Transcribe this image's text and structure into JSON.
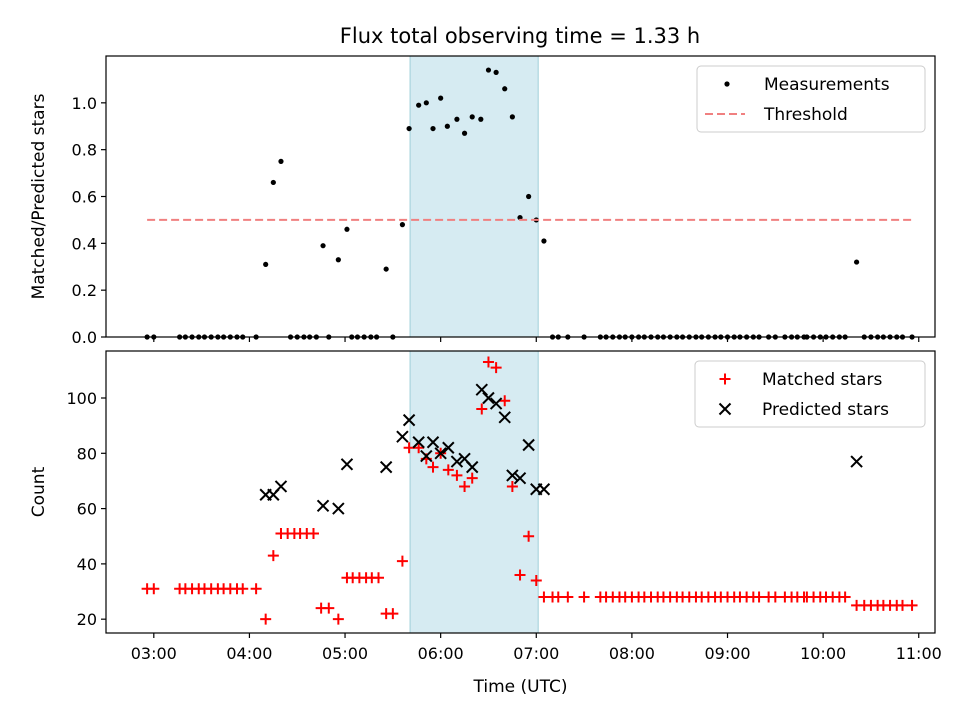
{
  "figure_title": "Flux total observing time = 1.33 h",
  "chart_data": [
    {
      "type": "scatter",
      "ylabel": "Matched/Predicted stars",
      "xlabel": "",
      "x_unit": "hours UTC",
      "xlim": [
        2.5,
        11.17
      ],
      "ylim": [
        0,
        1.2
      ],
      "yticks": [
        0.0,
        0.2,
        0.4,
        0.6,
        0.8,
        1.0
      ],
      "ytick_labels": [
        "0.0",
        "0.2",
        "0.4",
        "0.6",
        "0.8",
        "1.0"
      ],
      "xticks": [
        3,
        4,
        5,
        6,
        7,
        8,
        9,
        10,
        11
      ],
      "highlight_span": [
        5.68,
        7.02
      ],
      "legend_position": "upper right",
      "series": [
        {
          "name": "Measurements",
          "kind": "scatter",
          "marker": "dot",
          "color": "#000000",
          "x": [
            2.93,
            3.0,
            3.27,
            3.33,
            3.4,
            3.47,
            3.53,
            3.6,
            3.67,
            3.73,
            3.8,
            3.87,
            3.93,
            4.07,
            4.17,
            4.25,
            4.33,
            4.43,
            4.5,
            4.57,
            4.63,
            4.7,
            4.77,
            4.83,
            4.93,
            5.02,
            5.07,
            5.13,
            5.2,
            5.27,
            5.33,
            5.43,
            5.5,
            5.6,
            5.67,
            5.77,
            5.85,
            5.92,
            6.0,
            6.07,
            6.17,
            6.25,
            6.33,
            6.42,
            6.5,
            6.58,
            6.67,
            6.75,
            6.83,
            6.92,
            7.0,
            7.08,
            7.17,
            7.23,
            7.33,
            7.5,
            7.67,
            7.73,
            7.8,
            7.87,
            7.93,
            8.0,
            8.07,
            8.13,
            8.2,
            8.27,
            8.33,
            8.4,
            8.47,
            8.53,
            8.6,
            8.67,
            8.73,
            8.8,
            8.87,
            8.93,
            9.0,
            9.07,
            9.13,
            9.2,
            9.27,
            9.33,
            9.43,
            9.5,
            9.6,
            9.67,
            9.73,
            9.8,
            9.83,
            9.9,
            9.97,
            10.03,
            10.1,
            10.17,
            10.23,
            10.35,
            10.43,
            10.5,
            10.57,
            10.63,
            10.7,
            10.77,
            10.83,
            10.93
          ],
          "y": [
            0,
            0,
            0,
            0,
            0,
            0,
            0,
            0,
            0,
            0,
            0,
            0,
            0,
            0,
            0.31,
            0.66,
            0.75,
            0,
            0,
            0,
            0,
            0,
            0.39,
            0,
            0.33,
            0.46,
            0,
            0,
            0,
            0,
            0,
            0.29,
            0,
            0.48,
            0.89,
            0.99,
            1.0,
            0.89,
            1.02,
            0.9,
            0.93,
            0.87,
            0.94,
            0.93,
            1.14,
            1.13,
            1.06,
            0.94,
            0.51,
            0.6,
            0.5,
            0.41,
            0,
            0,
            0,
            0,
            0,
            0,
            0,
            0,
            0,
            0,
            0,
            0,
            0,
            0,
            0,
            0,
            0,
            0,
            0,
            0,
            0,
            0,
            0,
            0,
            0,
            0,
            0,
            0,
            0,
            0,
            0,
            0,
            0,
            0,
            0,
            0,
            0,
            0,
            0,
            0,
            0,
            0,
            0,
            0.32,
            0,
            0,
            0,
            0,
            0,
            0,
            0,
            0
          ]
        },
        {
          "name": "Threshold",
          "kind": "line",
          "style": "dashed",
          "color": "#f08080",
          "x": [
            2.93,
            10.93
          ],
          "y": [
            0.5,
            0.5
          ]
        }
      ]
    },
    {
      "type": "scatter",
      "ylabel": "Count",
      "xlabel": "Time (UTC)",
      "x_unit": "hours UTC",
      "xlim": [
        2.5,
        11.17
      ],
      "ylim": [
        15,
        117
      ],
      "yticks": [
        20,
        40,
        60,
        80,
        100
      ],
      "ytick_labels": [
        "20",
        "40",
        "60",
        "80",
        "100"
      ],
      "xticks": [
        3,
        4,
        5,
        6,
        7,
        8,
        9,
        10,
        11
      ],
      "xtick_labels": [
        "03:00",
        "04:00",
        "05:00",
        "06:00",
        "07:00",
        "08:00",
        "09:00",
        "10:00",
        "11:00"
      ],
      "highlight_span": [
        5.68,
        7.02
      ],
      "legend_position": "upper right",
      "series": [
        {
          "name": "Matched stars",
          "kind": "scatter",
          "marker": "plus",
          "color": "#ff0000",
          "x": [
            2.93,
            3.0,
            3.27,
            3.33,
            3.4,
            3.47,
            3.53,
            3.6,
            3.67,
            3.73,
            3.8,
            3.87,
            3.93,
            4.07,
            4.17,
            4.25,
            4.33,
            4.4,
            4.47,
            4.53,
            4.6,
            4.67,
            4.75,
            4.83,
            4.93,
            5.02,
            5.08,
            5.15,
            5.22,
            5.28,
            5.35,
            5.43,
            5.5,
            5.6,
            5.67,
            5.77,
            5.85,
            5.92,
            6.0,
            6.08,
            6.17,
            6.25,
            6.33,
            6.43,
            6.5,
            6.58,
            6.67,
            6.75,
            6.83,
            6.92,
            7.0,
            7.08,
            7.17,
            7.23,
            7.33,
            7.5,
            7.67,
            7.73,
            7.8,
            7.87,
            7.93,
            8.0,
            8.07,
            8.13,
            8.2,
            8.27,
            8.33,
            8.4,
            8.47,
            8.53,
            8.6,
            8.67,
            8.73,
            8.8,
            8.87,
            8.93,
            9.0,
            9.07,
            9.13,
            9.2,
            9.27,
            9.33,
            9.43,
            9.5,
            9.6,
            9.67,
            9.73,
            9.8,
            9.83,
            9.9,
            9.97,
            10.03,
            10.1,
            10.17,
            10.23,
            10.35,
            10.43,
            10.5,
            10.57,
            10.63,
            10.7,
            10.77,
            10.83,
            10.93
          ],
          "y": [
            31,
            31,
            31,
            31,
            31,
            31,
            31,
            31,
            31,
            31,
            31,
            31,
            31,
            31,
            20,
            43,
            51,
            51,
            51,
            51,
            51,
            51,
            24,
            24,
            20,
            35,
            35,
            35,
            35,
            35,
            35,
            22,
            22,
            41,
            82,
            82,
            78,
            75,
            80,
            74,
            72,
            68,
            71,
            96,
            113,
            111,
            99,
            68,
            36,
            50,
            34,
            28,
            28,
            28,
            28,
            28,
            28,
            28,
            28,
            28,
            28,
            28,
            28,
            28,
            28,
            28,
            28,
            28,
            28,
            28,
            28,
            28,
            28,
            28,
            28,
            28,
            28,
            28,
            28,
            28,
            28,
            28,
            28,
            28,
            28,
            28,
            28,
            28,
            28,
            28,
            28,
            28,
            28,
            28,
            28,
            25,
            25,
            25,
            25,
            25,
            25,
            25,
            25,
            25
          ]
        },
        {
          "name": "Predicted stars",
          "kind": "scatter",
          "marker": "x",
          "color": "#000000",
          "x": [
            4.17,
            4.25,
            4.33,
            4.77,
            4.93,
            5.02,
            5.43,
            5.6,
            5.67,
            5.77,
            5.85,
            5.92,
            6.0,
            6.08,
            6.17,
            6.25,
            6.33,
            6.43,
            6.5,
            6.58,
            6.67,
            6.75,
            6.83,
            6.92,
            7.0,
            7.08,
            10.35
          ],
          "y": [
            65,
            65,
            68,
            61,
            60,
            76,
            75,
            86,
            92,
            84,
            79,
            84,
            80,
            82,
            77,
            78,
            75,
            103,
            100,
            98,
            93,
            72,
            71,
            83,
            67,
            67,
            77
          ]
        }
      ]
    }
  ]
}
